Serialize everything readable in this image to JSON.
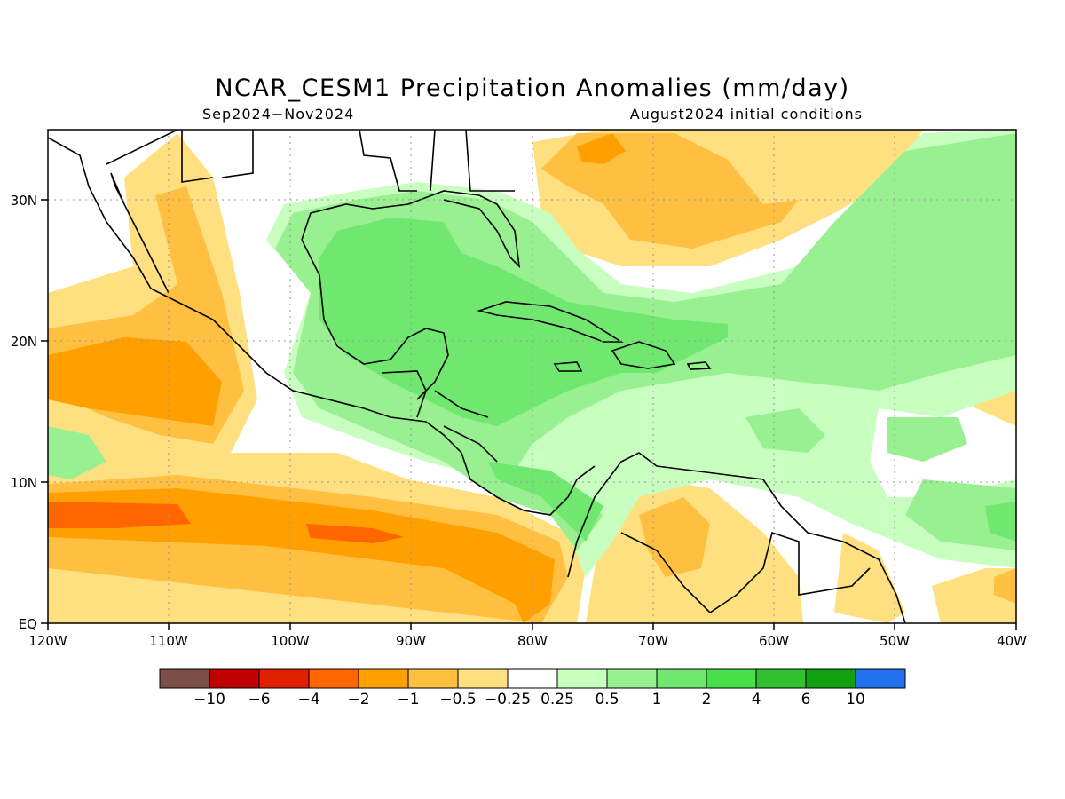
{
  "title": "NCAR_CESM1 Precipitation Anomalies (mm/day)",
  "subtitle_left": "Sep2024−Nov2024",
  "subtitle_right": "August2024 initial conditions",
  "map": {
    "lon_range": [
      -120,
      -40
    ],
    "lat_range": [
      0,
      35
    ],
    "x_ticks": [
      "120W",
      "110W",
      "100W",
      "90W",
      "80W",
      "70W",
      "60W",
      "50W",
      "40W"
    ],
    "y_ticks": [
      "EQ",
      "10N",
      "20N",
      "30N"
    ],
    "grid": true
  },
  "colorbar": {
    "labels": [
      "−10",
      "−6",
      "−4",
      "−2",
      "−1",
      "−0.5",
      "−0.25",
      "0.25",
      "0.5",
      "1",
      "2",
      "4",
      "6",
      "10"
    ],
    "colors": [
      "#7a5048",
      "#c00000",
      "#e02000",
      "#ff6600",
      "#ff9f00",
      "#ffbf40",
      "#ffe080",
      "#ffffff",
      "#c8ffc0",
      "#98f090",
      "#70e870",
      "#48e048",
      "#30c030",
      "#10a010",
      "#2070f0"
    ]
  }
}
